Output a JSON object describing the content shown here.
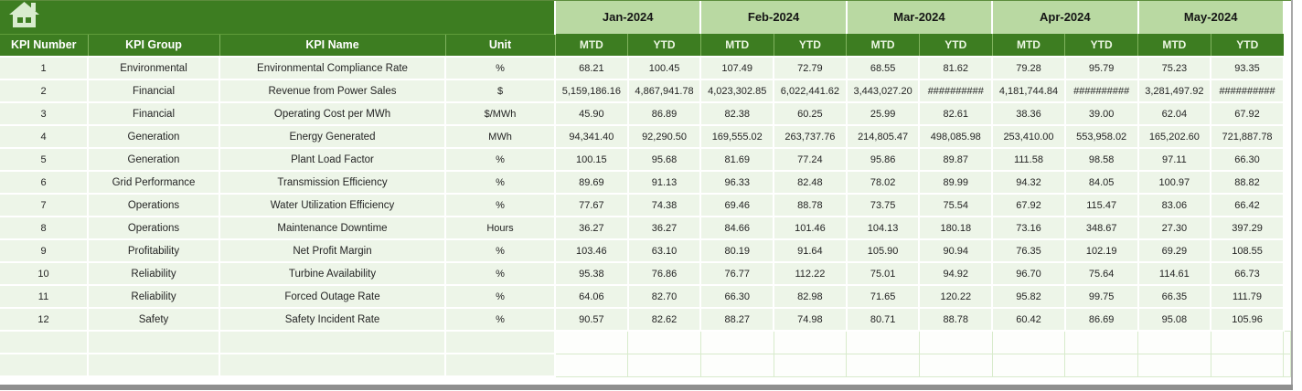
{
  "colors": {
    "header_dark_green": "#3d7d21",
    "month_light_green": "#b9d9a2",
    "row_pale_green": "#edf5e8",
    "grid_white": "#ffffff",
    "empty_cell_border": "#d8ebcc",
    "window_edge_gray": "#8f8f8f"
  },
  "icons": {
    "home": "home-icon"
  },
  "header": {
    "left_columns": [
      "KPI Number",
      "KPI Group",
      "KPI Name",
      "Unit"
    ],
    "months": [
      "Jan-2024",
      "Feb-2024",
      "Mar-2024",
      "Apr-2024",
      "May-2024"
    ],
    "period_types": [
      "MTD",
      "YTD"
    ]
  },
  "rows": [
    {
      "number": "1",
      "group": "Environmental",
      "name": "Environmental Compliance Rate",
      "unit": "%",
      "values": [
        "68.21",
        "100.45",
        "107.49",
        "72.79",
        "68.55",
        "81.62",
        "79.28",
        "95.79",
        "75.23",
        "93.35"
      ]
    },
    {
      "number": "2",
      "group": "Financial",
      "name": "Revenue from Power Sales",
      "unit": "$",
      "values": [
        "5,159,186.16",
        "4,867,941.78",
        "4,023,302.85",
        "6,022,441.62",
        "3,443,027.20",
        "##########",
        "4,181,744.84",
        "##########",
        "3,281,497.92",
        "##########"
      ]
    },
    {
      "number": "3",
      "group": "Financial",
      "name": "Operating Cost per MWh",
      "unit": "$/MWh",
      "values": [
        "45.90",
        "86.89",
        "82.38",
        "60.25",
        "25.99",
        "82.61",
        "38.36",
        "39.00",
        "62.04",
        "67.92"
      ]
    },
    {
      "number": "4",
      "group": "Generation",
      "name": "Energy Generated",
      "unit": "MWh",
      "values": [
        "94,341.40",
        "92,290.50",
        "169,555.02",
        "263,737.76",
        "214,805.47",
        "498,085.98",
        "253,410.00",
        "553,958.02",
        "165,202.60",
        "721,887.78"
      ]
    },
    {
      "number": "5",
      "group": "Generation",
      "name": "Plant Load Factor",
      "unit": "%",
      "values": [
        "100.15",
        "95.68",
        "81.69",
        "77.24",
        "95.86",
        "89.87",
        "111.58",
        "98.58",
        "97.11",
        "66.30"
      ]
    },
    {
      "number": "6",
      "group": "Grid Performance",
      "name": "Transmission Efficiency",
      "unit": "%",
      "values": [
        "89.69",
        "91.13",
        "96.33",
        "82.48",
        "78.02",
        "89.99",
        "94.32",
        "84.05",
        "100.97",
        "88.82"
      ]
    },
    {
      "number": "7",
      "group": "Operations",
      "name": "Water Utilization Efficiency",
      "unit": "%",
      "values": [
        "77.67",
        "74.38",
        "69.46",
        "88.78",
        "73.75",
        "75.54",
        "67.92",
        "115.47",
        "83.06",
        "66.42"
      ]
    },
    {
      "number": "8",
      "group": "Operations",
      "name": "Maintenance Downtime",
      "unit": "Hours",
      "values": [
        "36.27",
        "36.27",
        "84.66",
        "101.46",
        "104.13",
        "180.18",
        "73.16",
        "348.67",
        "27.30",
        "397.29"
      ]
    },
    {
      "number": "9",
      "group": "Profitability",
      "name": "Net Profit Margin",
      "unit": "%",
      "values": [
        "103.46",
        "63.10",
        "80.19",
        "91.64",
        "105.90",
        "90.94",
        "76.35",
        "102.19",
        "69.29",
        "108.55"
      ]
    },
    {
      "number": "10",
      "group": "Reliability",
      "name": "Turbine Availability",
      "unit": "%",
      "values": [
        "95.38",
        "76.86",
        "76.77",
        "112.22",
        "75.01",
        "94.92",
        "96.70",
        "75.64",
        "114.61",
        "66.73"
      ]
    },
    {
      "number": "11",
      "group": "Reliability",
      "name": "Forced Outage Rate",
      "unit": "%",
      "values": [
        "64.06",
        "82.70",
        "66.30",
        "82.98",
        "71.65",
        "120.22",
        "95.82",
        "99.75",
        "66.35",
        "111.79"
      ]
    },
    {
      "number": "12",
      "group": "Safety",
      "name": "Safety Incident Rate",
      "unit": "%",
      "values": [
        "90.57",
        "82.62",
        "88.27",
        "74.98",
        "80.71",
        "88.78",
        "60.42",
        "86.69",
        "95.08",
        "105.96"
      ]
    }
  ],
  "empty_row_count": 2
}
